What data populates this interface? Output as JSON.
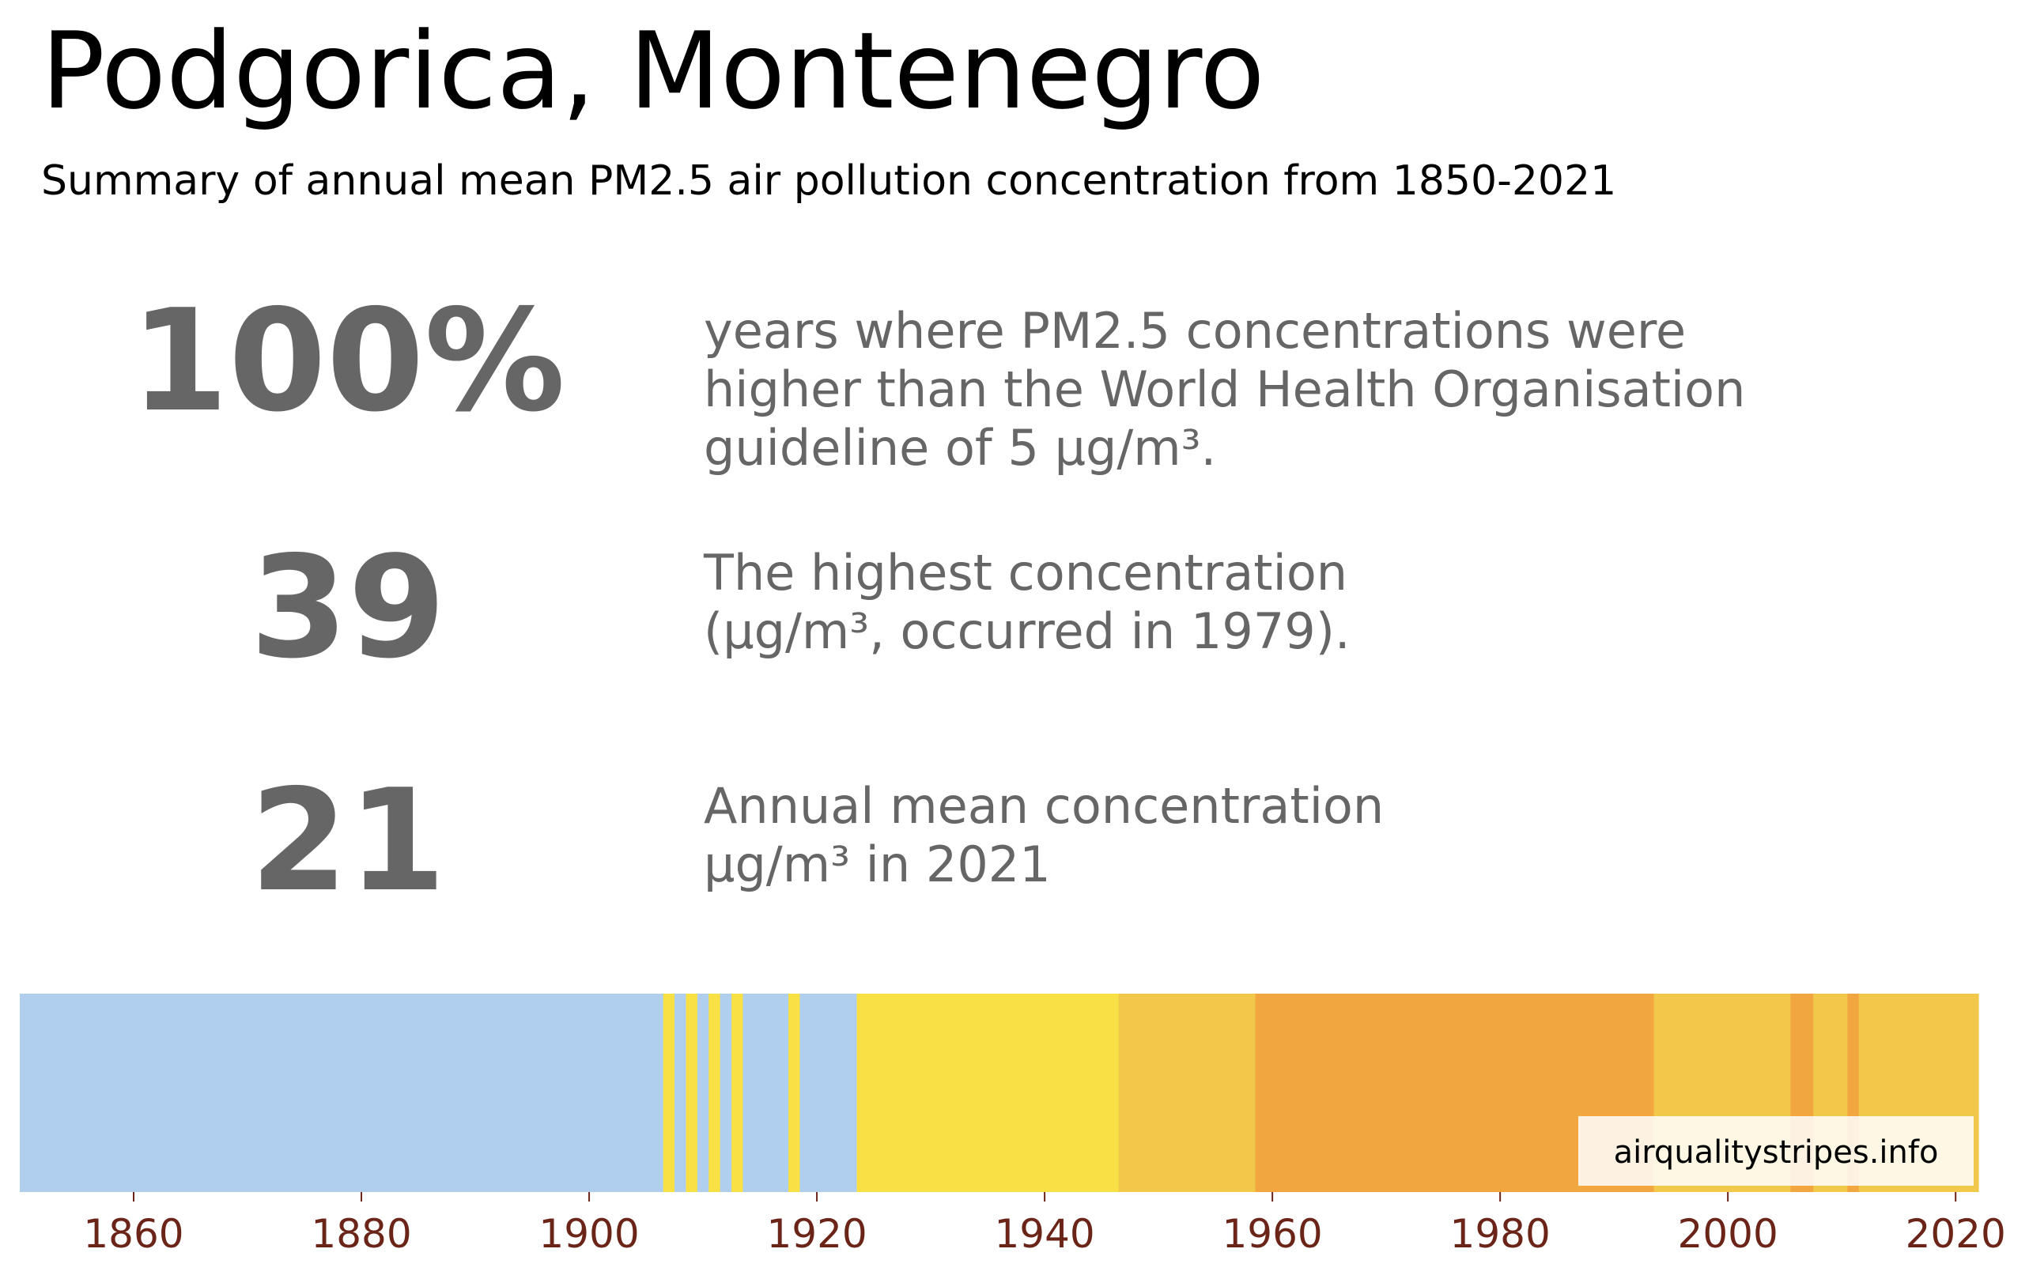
{
  "title": "Podgorica, Montenegro",
  "subtitle": "Summary of annual mean PM2.5 air pollution concentration from 1850-2021",
  "stats": [
    {
      "value": "100%",
      "lines": [
        "years where PM2.5 concentrations were",
        "higher than the World Health Organisation",
        "guideline of 5 µg/m³."
      ]
    },
    {
      "value": "39",
      "lines": [
        "The highest concentration",
        "(µg/m³, occurred in 1979)."
      ]
    },
    {
      "value": "21",
      "lines": [
        "Annual mean concentration",
        "µg/m³ in 2021"
      ]
    }
  ],
  "watermark": "airqualitystripes.info",
  "colors": {
    "tick_label": "#6b2418",
    "stat_text": "#666666"
  },
  "chart_data": {
    "type": "heatmap",
    "x_range": [
      1850,
      2022
    ],
    "x_ticks": [
      1860,
      1880,
      1900,
      1920,
      1940,
      1960,
      1980,
      2000,
      2020
    ],
    "segments": [
      {
        "start": 1850,
        "end": 1906.5,
        "color": "#b0cfee"
      },
      {
        "start": 1906.5,
        "end": 1907.5,
        "color": "#f8e045"
      },
      {
        "start": 1907.5,
        "end": 1908.5,
        "color": "#b0cfee"
      },
      {
        "start": 1908.5,
        "end": 1909.5,
        "color": "#f8e045"
      },
      {
        "start": 1909.5,
        "end": 1910.5,
        "color": "#b0cfee"
      },
      {
        "start": 1910.5,
        "end": 1911.5,
        "color": "#f8e045"
      },
      {
        "start": 1911.5,
        "end": 1912.5,
        "color": "#b0cfee"
      },
      {
        "start": 1912.5,
        "end": 1913.5,
        "color": "#f8e045"
      },
      {
        "start": 1913.5,
        "end": 1917.5,
        "color": "#b0cfee"
      },
      {
        "start": 1917.5,
        "end": 1918.5,
        "color": "#f8e045"
      },
      {
        "start": 1918.5,
        "end": 1923.5,
        "color": "#b0cfee"
      },
      {
        "start": 1923.5,
        "end": 1946.5,
        "color": "#f8e045"
      },
      {
        "start": 1946.5,
        "end": 1958.5,
        "color": "#f2c84b"
      },
      {
        "start": 1958.5,
        "end": 1993.5,
        "color": "#f1a640"
      },
      {
        "start": 1993.5,
        "end": 2005.5,
        "color": "#f2c84b"
      },
      {
        "start": 2005.5,
        "end": 2007.5,
        "color": "#f1a640"
      },
      {
        "start": 2007.5,
        "end": 2010.5,
        "color": "#f2c84b"
      },
      {
        "start": 2010.5,
        "end": 2011.5,
        "color": "#f1a640"
      },
      {
        "start": 2011.5,
        "end": 2022,
        "color": "#f2c84b"
      }
    ]
  }
}
